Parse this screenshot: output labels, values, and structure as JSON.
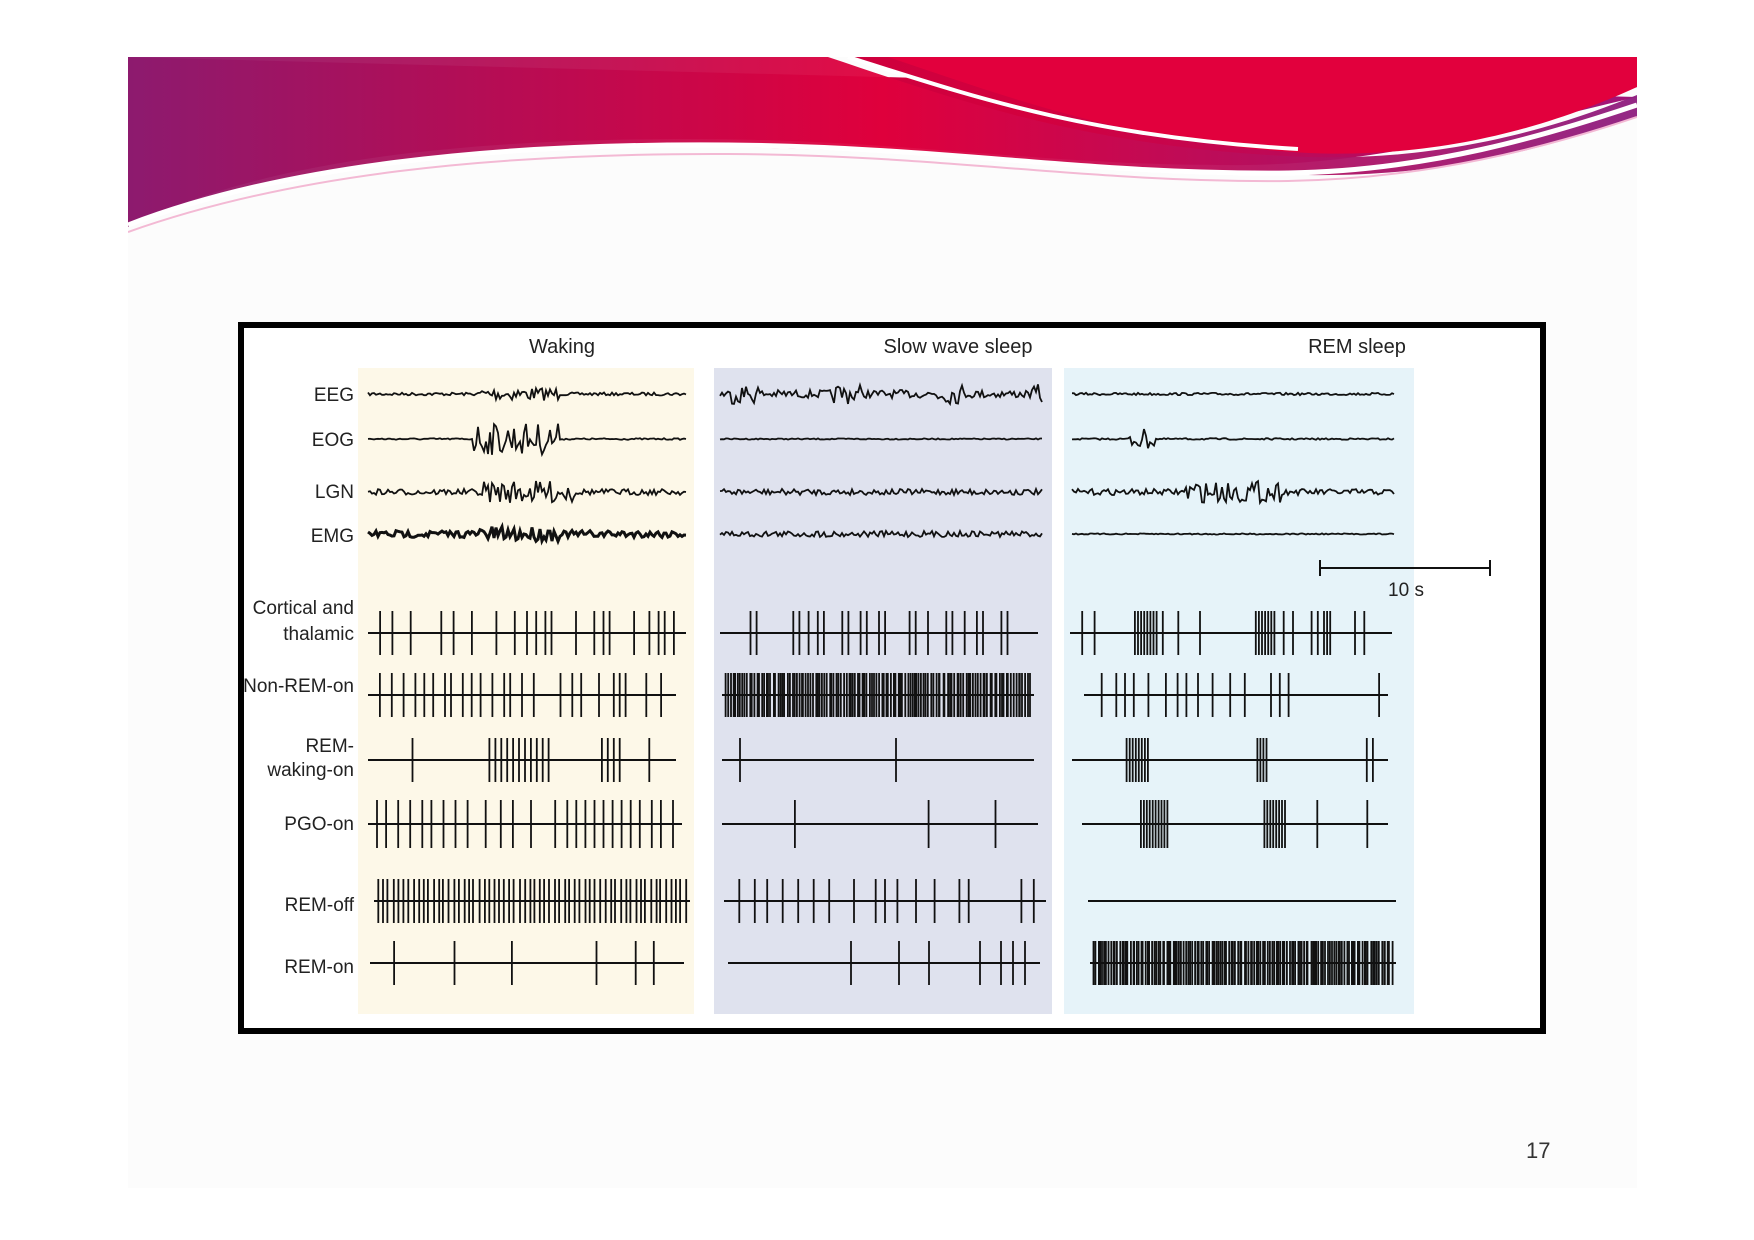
{
  "columns": [
    {
      "title": "Waking",
      "color": "#fdf8e8"
    },
    {
      "title": "Slow wave sleep",
      "color": "#dfe2ee"
    },
    {
      "title": "REM sleep",
      "color": "#e6f3f9"
    }
  ],
  "traces": [
    {
      "label": "EEG",
      "style": [
        "thin-burst",
        "dense-wave",
        "thin"
      ]
    },
    {
      "label": "EOG",
      "style": [
        "big-burst",
        "flat",
        "small-burst"
      ]
    },
    {
      "label": "LGN",
      "style": [
        "wave-burst",
        "wave",
        "wave-burst"
      ]
    },
    {
      "label": "EMG",
      "style": [
        "thick",
        "wave",
        "flat"
      ]
    }
  ],
  "scale_bar": {
    "label": "10 s"
  },
  "spike_rows": [
    {
      "label_lines": [
        "Cortical and",
        "thalamic"
      ]
    },
    {
      "label_lines": [
        "Non-REM-on"
      ]
    },
    {
      "label_lines": [
        "REM-",
        "waking-on"
      ]
    },
    {
      "label_lines": [
        "PGO-on"
      ]
    },
    {
      "label_lines": [
        "REM-off"
      ]
    },
    {
      "label_lines": [
        "REM-on"
      ]
    }
  ],
  "page_number": "17",
  "colors": {
    "banner_primary": "#c2003b",
    "banner_secondary": "#9b1a7a"
  }
}
